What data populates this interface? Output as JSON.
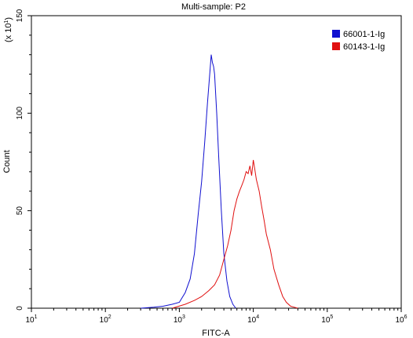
{
  "chart_data": {
    "type": "line",
    "title": "Multi-sample: P2",
    "xlabel": "FITC-A",
    "ylabel": "Count",
    "y_multiplier_label": "(x 10",
    "y_multiplier_exp": "1",
    "y_multiplier_close": ")",
    "x_scale": "log",
    "xlim": [
      10,
      1000000
    ],
    "ylim": [
      0,
      150
    ],
    "grid": false,
    "legend_position": "top-right",
    "x_ticks": [
      {
        "base": "10",
        "exp": "1",
        "value": 10
      },
      {
        "base": "10",
        "exp": "2",
        "value": 100
      },
      {
        "base": "10",
        "exp": "3",
        "value": 1000
      },
      {
        "base": "10",
        "exp": "4",
        "value": 10000
      },
      {
        "base": "10",
        "exp": "5",
        "value": 100000
      },
      {
        "base": "10",
        "exp": "6",
        "value": 1000000
      }
    ],
    "y_ticks": [
      {
        "label": "0",
        "value": 0
      },
      {
        "label": "50",
        "value": 50
      },
      {
        "label": "100",
        "value": 100
      },
      {
        "label": "150",
        "value": 150
      }
    ],
    "series": [
      {
        "name": "66001-1-Ig",
        "color": "#1010d0",
        "x": [
          300,
          450,
          600,
          800,
          1000,
          1200,
          1400,
          1600,
          1800,
          2000,
          2200,
          2400,
          2600,
          2700,
          2800,
          2900,
          3000,
          3200,
          3400,
          3700,
          4000,
          4400,
          4800,
          5300,
          5800
        ],
        "y": [
          0,
          0.5,
          1,
          2,
          3,
          8,
          15,
          28,
          48,
          65,
          85,
          105,
          122,
          130,
          126,
          124,
          120,
          100,
          78,
          50,
          28,
          14,
          6,
          2,
          0
        ]
      },
      {
        "name": "60143-1-Ig",
        "color": "#e01010",
        "x": [
          800,
          1200,
          1600,
          2000,
          2500,
          3000,
          3500,
          4000,
          4500,
          5000,
          5500,
          6000,
          6500,
          7000,
          7500,
          8000,
          8500,
          9000,
          9500,
          10000,
          10500,
          11000,
          12000,
          13000,
          14000,
          15000,
          17000,
          19000,
          22000,
          25000,
          28000,
          32000,
          36000,
          40000
        ],
        "y": [
          0,
          2,
          4,
          6,
          9,
          12,
          17,
          25,
          32,
          40,
          50,
          56,
          60,
          63,
          66,
          70,
          69,
          73,
          68,
          76,
          71,
          66,
          60,
          52,
          45,
          38,
          30,
          20,
          12,
          6,
          3,
          1,
          0.5,
          0
        ]
      }
    ]
  }
}
